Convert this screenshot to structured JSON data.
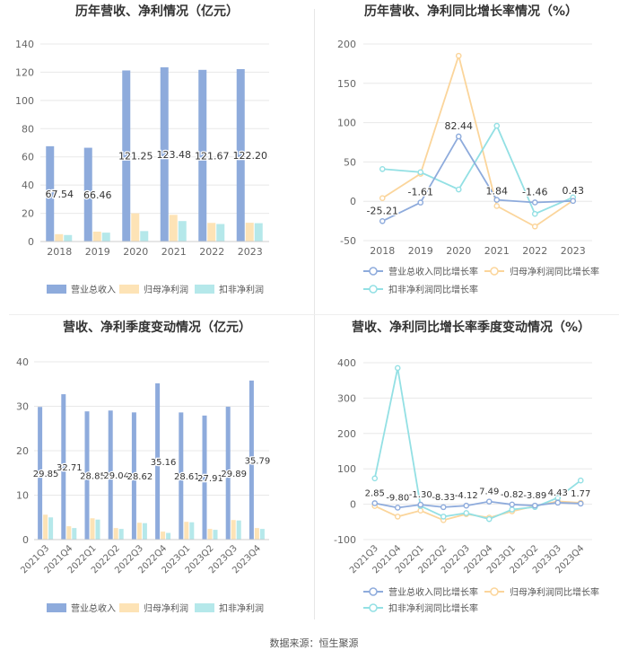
{
  "source": "数据来源：恒生聚源",
  "colors": {
    "revenue": "#8eabdc",
    "parent_np": "#fde3b6",
    "deducted_np": "#b5e8ea",
    "rev_growth": "#8eabdc",
    "np_growth": "#fbd59b",
    "ded_growth": "#93e0e4",
    "grid": "#e8e8e8",
    "axis_text": "#666666",
    "title": "#333333"
  },
  "chart_data": [
    {
      "type": "bar",
      "title": "历年营收、净利情况（亿元）",
      "categories": [
        "2018",
        "2019",
        "2020",
        "2021",
        "2022",
        "2023"
      ],
      "ylim": [
        0,
        140
      ],
      "yticks": [
        0,
        20,
        40,
        60,
        80,
        100,
        120,
        140
      ],
      "series": [
        {
          "name": "营业总收入",
          "values": [
            67.54,
            66.46,
            121.25,
            123.48,
            121.67,
            122.2
          ],
          "labels": [
            "67.54",
            "66.46",
            "121.25",
            "123.48",
            "121.67",
            "122.20"
          ]
        },
        {
          "name": "归母净利润",
          "values": [
            5.2,
            7.0,
            20.0,
            18.9,
            13.2,
            13.3
          ]
        },
        {
          "name": "扣非净利润",
          "values": [
            4.6,
            6.3,
            7.4,
            14.5,
            12.4,
            13.0
          ]
        }
      ],
      "legend": "bottom"
    },
    {
      "type": "line",
      "title": "历年营收、净利同比增长率情况（%）",
      "categories": [
        "2018",
        "2019",
        "2020",
        "2021",
        "2022",
        "2023"
      ],
      "ylim": [
        -50,
        200
      ],
      "yticks": [
        -50,
        0,
        50,
        100,
        150,
        200
      ],
      "series": [
        {
          "name": "营业总收入同比增长率",
          "values": [
            -25.21,
            -1.61,
            82.44,
            1.84,
            -1.46,
            0.43
          ],
          "labels": [
            "-25.21",
            "-1.61",
            "82.44",
            "1.84",
            "-1.46",
            "0.43"
          ]
        },
        {
          "name": "归母净利润同比增长率",
          "values": [
            4,
            35,
            185,
            -6,
            -32,
            1
          ]
        },
        {
          "name": "扣非净利润同比增长率",
          "values": [
            41,
            37,
            15,
            96,
            -16,
            5
          ]
        }
      ],
      "legend": "bottom"
    },
    {
      "type": "bar",
      "title": "营收、净利季度变动情况（亿元）",
      "categories": [
        "2021Q3",
        "2021Q4",
        "2022Q1",
        "2022Q2",
        "2022Q3",
        "2022Q4",
        "2023Q1",
        "2023Q2",
        "2023Q3",
        "2023Q4"
      ],
      "ylim": [
        0,
        40
      ],
      "yticks": [
        0,
        10,
        20,
        30,
        40
      ],
      "series": [
        {
          "name": "营业总收入",
          "values": [
            29.85,
            32.71,
            28.85,
            29.04,
            28.62,
            35.16,
            28.61,
            27.91,
            29.89,
            35.79
          ],
          "labels": [
            "29.85",
            "32.71",
            "28.85",
            "29.04",
            "28.62",
            "35.16",
            "28.61",
            "27.91",
            "29.89",
            "35.79"
          ]
        },
        {
          "name": "归母净利润",
          "values": [
            5.6,
            3.0,
            4.8,
            2.6,
            3.8,
            1.8,
            4.0,
            2.4,
            4.4,
            2.6
          ]
        },
        {
          "name": "扣非净利润",
          "values": [
            5.0,
            2.6,
            4.5,
            2.4,
            3.7,
            1.5,
            3.9,
            2.2,
            4.3,
            2.4
          ]
        }
      ],
      "legend": "bottom"
    },
    {
      "type": "line",
      "title": "营收、净利同比增长率季度变动情况（%）",
      "categories": [
        "2021Q3",
        "2021Q4",
        "2022Q1",
        "2022Q2",
        "2022Q3",
        "2022Q4",
        "2023Q1",
        "2023Q2",
        "2023Q3",
        "2023Q4"
      ],
      "ylim": [
        -100,
        400
      ],
      "yticks": [
        -100,
        0,
        100,
        200,
        300,
        400
      ],
      "series": [
        {
          "name": "营业总收入同比增长率",
          "values": [
            2.85,
            -9.8,
            -1.3,
            -8.33,
            -4.12,
            7.49,
            -0.82,
            -3.89,
            4.43,
            1.77
          ],
          "labels": [
            "2.85",
            "-9.80",
            "-1.30",
            "-8.33",
            "-4.12",
            "7.49",
            "-0.82",
            "-3.89",
            "4.43",
            "1.77"
          ]
        },
        {
          "name": "归母净利润同比增长率",
          "values": [
            -5,
            -35,
            -18,
            -45,
            -28,
            -38,
            -20,
            -5,
            8,
            4
          ]
        },
        {
          "name": "扣非净利润同比增长率",
          "values": [
            73,
            385,
            -5,
            -35,
            -25,
            -42,
            -15,
            -8,
            18,
            67
          ]
        }
      ],
      "legend": "bottom"
    }
  ]
}
